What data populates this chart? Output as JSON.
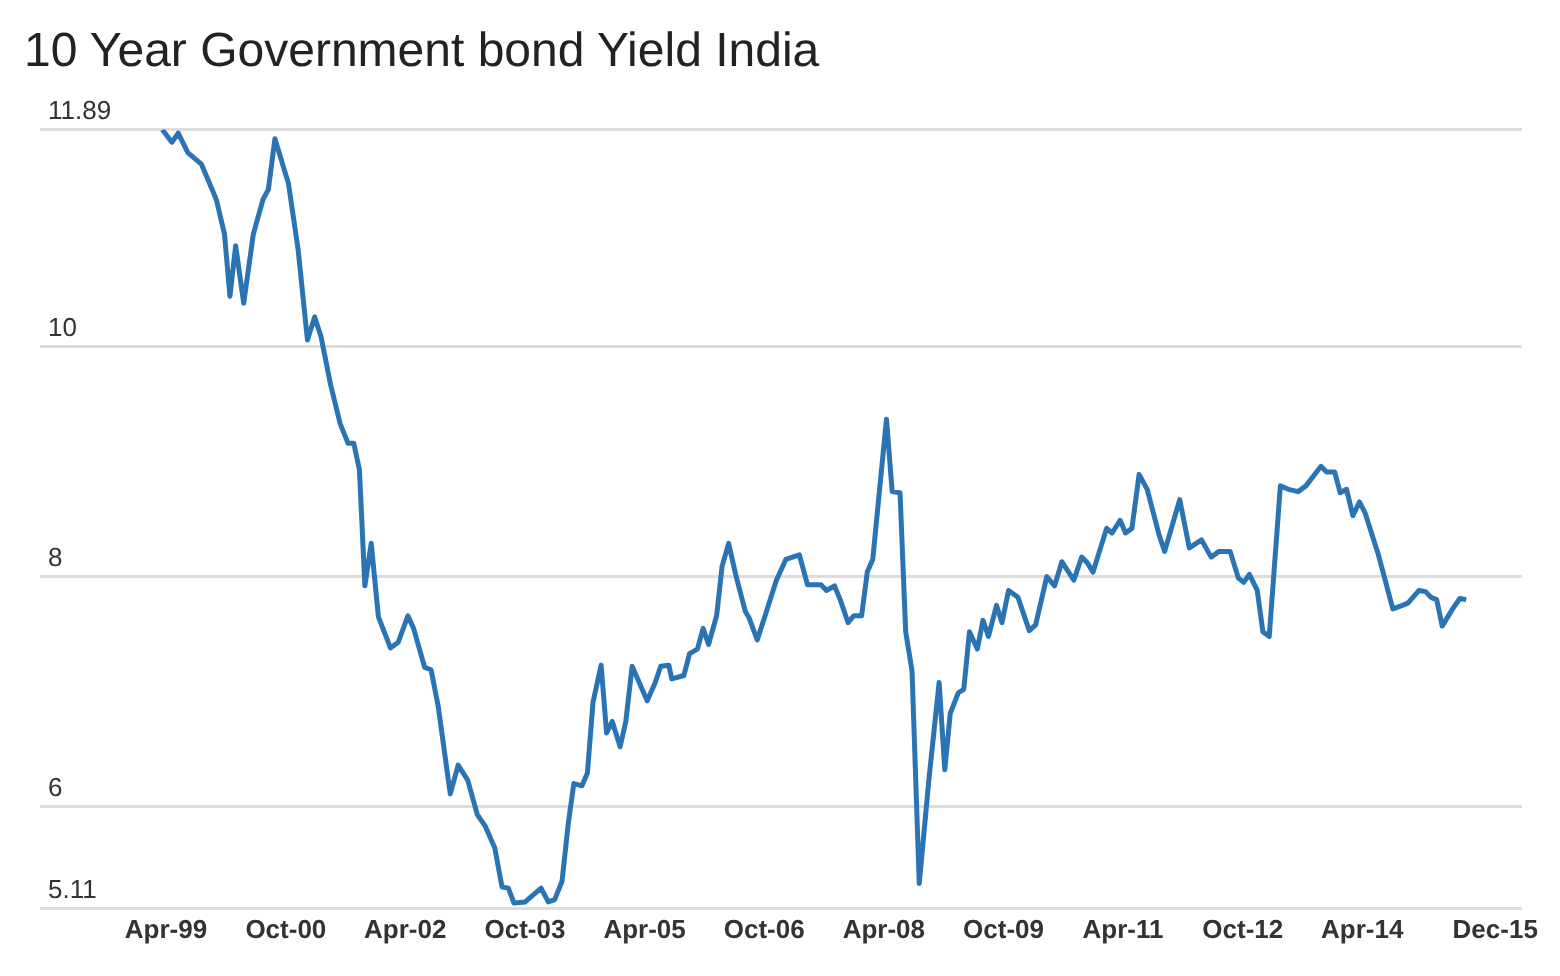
{
  "chart_data": {
    "type": "line",
    "title": "10 Year Government bond Yield India",
    "x": [
      "1999-03-15",
      "1999-04-28",
      "1999-05-27",
      "1999-07-10",
      "1999-09-10",
      "1999-11-18",
      "1999-12-25",
      "2000-01-19",
      "2000-02-14",
      "2000-03-22",
      "2000-05-05",
      "2000-06-18",
      "2000-07-13",
      "2000-08-12",
      "2000-10-13",
      "2000-11-26",
      "2001-01-08",
      "2001-02-10",
      "2001-03-11",
      "2001-04-24",
      "2001-06-07",
      "2001-07-13",
      "2001-08-08",
      "2001-09-03",
      "2001-09-28",
      "2001-10-27",
      "2001-11-29",
      "2002-01-23",
      "2002-02-28",
      "2002-04-13",
      "2002-05-09",
      "2002-06-29",
      "2002-07-28",
      "2002-08-30",
      "2002-10-24",
      "2002-11-29",
      "2003-01-12",
      "2003-02-25",
      "2003-04-02",
      "2003-05-16",
      "2003-06-18",
      "2003-07-17",
      "2003-08-12",
      "2003-10-02",
      "2003-12-14",
      "2004-01-16",
      "2004-02-14",
      "2004-03-19",
      "2004-04-17",
      "2004-05-12",
      "2004-06-18",
      "2004-07-13",
      "2004-08-08",
      "2004-09-14",
      "2004-10-09",
      "2004-11-04",
      "2004-12-10",
      "2005-01-05",
      "2005-02-03",
      "2005-04-13",
      "2005-05-20",
      "2005-06-14",
      "2005-07-21",
      "2005-08-04",
      "2005-09-28",
      "2005-10-24",
      "2005-11-29",
      "2005-12-25",
      "2006-01-19",
      "2006-02-25",
      "2006-03-22",
      "2006-04-21",
      "2006-05-23",
      "2006-07-06",
      "2006-07-24",
      "2006-08-30",
      "2006-10-05",
      "2006-11-26",
      "2007-01-08",
      "2007-03-11",
      "2007-04-17",
      "2007-06-18",
      "2007-07-13",
      "2007-08-19",
      "2007-09-14",
      "2007-10-20",
      "2007-11-15",
      "2007-12-21",
      "2008-01-16",
      "2008-02-10",
      "2008-04-13",
      "2008-05-09",
      "2008-06-14",
      "2008-07-10",
      "2008-08-08",
      "2008-09-10",
      "2008-10-24",
      "2008-12-10",
      "2009-01-05",
      "2009-01-30",
      "2009-03-08",
      "2009-04-02",
      "2009-04-28",
      "2009-06-03",
      "2009-06-29",
      "2009-07-24",
      "2009-08-30",
      "2009-09-24",
      "2009-10-24",
      "2009-12-06",
      "2010-01-27",
      "2010-02-25",
      "2010-03-30",
      "2010-04-17",
      "2010-05-23",
      "2010-06-25",
      "2010-08-19",
      "2010-09-24",
      "2010-10-20",
      "2010-11-15",
      "2011-01-16",
      "2011-02-10",
      "2011-03-19",
      "2011-04-13",
      "2011-05-12",
      "2011-06-14",
      "2011-07-21",
      "2011-09-14",
      "2011-10-09",
      "2011-12-17",
      "2012-01-30",
      "2012-03-26",
      "2012-05-09",
      "2012-06-14",
      "2012-08-04",
      "2012-09-10",
      "2012-10-05",
      "2012-10-31",
      "2012-12-06",
      "2013-01-01",
      "2013-01-30",
      "2013-03-22",
      "2013-04-28",
      "2013-06-11",
      "2013-07-17",
      "2013-09-24",
      "2013-10-20",
      "2013-11-26",
      "2013-12-21",
      "2014-01-19",
      "2014-02-17",
      "2014-03-19",
      "2014-04-13",
      "2014-06-14",
      "2014-08-19",
      "2014-10-02",
      "2014-10-27",
      "2014-12-17",
      "2015-01-16",
      "2015-02-10",
      "2015-03-08",
      "2015-04-02",
      "2015-05-20",
      "2015-06-22",
      "2015-07-21"
    ],
    "series": [
      {
        "color": "#2b74b4",
        "values": [
          11.89,
          11.78,
          11.86,
          11.69,
          11.59,
          11.28,
          10.98,
          10.44,
          10.88,
          10.38,
          10.98,
          11.28,
          11.37,
          11.81,
          11.42,
          10.85,
          10.06,
          10.26,
          10.09,
          9.67,
          9.33,
          9.16,
          9.16,
          8.93,
          7.92,
          8.29,
          7.65,
          7.38,
          7.43,
          7.66,
          7.55,
          7.21,
          7.19,
          6.87,
          6.11,
          6.36,
          6.23,
          5.93,
          5.83,
          5.64,
          5.3,
          5.29,
          5.16,
          5.17,
          5.29,
          5.17,
          5.19,
          5.35,
          5.86,
          6.2,
          6.18,
          6.29,
          6.91,
          7.23,
          6.64,
          6.74,
          6.52,
          6.74,
          7.22,
          6.92,
          7.08,
          7.22,
          7.23,
          7.11,
          7.14,
          7.33,
          7.37,
          7.55,
          7.41,
          7.66,
          8.09,
          8.29,
          8.02,
          7.7,
          7.64,
          7.45,
          7.66,
          7.97,
          8.15,
          8.19,
          7.93,
          7.93,
          7.88,
          7.92,
          7.8,
          7.6,
          7.66,
          7.66,
          8.04,
          8.15,
          9.37,
          8.74,
          8.73,
          7.52,
          7.18,
          5.33,
          6.23,
          7.08,
          6.32,
          6.81,
          6.99,
          7.02,
          7.52,
          7.37,
          7.62,
          7.48,
          7.75,
          7.6,
          7.88,
          7.82,
          7.53,
          7.58,
          7.85,
          8.0,
          7.92,
          8.13,
          7.97,
          8.17,
          8.12,
          8.04,
          8.42,
          8.38,
          8.49,
          8.38,
          8.42,
          8.89,
          8.76,
          8.36,
          8.22,
          8.67,
          8.25,
          8.32,
          8.17,
          8.22,
          8.22,
          7.99,
          7.95,
          8.02,
          7.88,
          7.52,
          7.48,
          8.79,
          8.76,
          8.74,
          8.79,
          8.96,
          8.91,
          8.91,
          8.73,
          8.76,
          8.53,
          8.65,
          8.56,
          8.19,
          7.72,
          7.75,
          7.77,
          7.88,
          7.87,
          7.82,
          7.8,
          7.57,
          7.72,
          7.81,
          7.8
        ]
      }
    ],
    "xlim": [
      "1997-09",
      "2016-04"
    ],
    "xticks": [
      {
        "value": "1999-04",
        "label": "Apr-99"
      },
      {
        "value": "2000-10",
        "label": "Oct-00"
      },
      {
        "value": "2002-04",
        "label": "Apr-02"
      },
      {
        "value": "2003-10",
        "label": "Oct-03"
      },
      {
        "value": "2005-04",
        "label": "Apr-05"
      },
      {
        "value": "2006-10",
        "label": "Oct-06"
      },
      {
        "value": "2008-04",
        "label": "Apr-08"
      },
      {
        "value": "2009-10",
        "label": "Oct-09"
      },
      {
        "value": "2011-04",
        "label": "Apr-11"
      },
      {
        "value": "2012-10",
        "label": "Oct-12"
      },
      {
        "value": "2014-04",
        "label": "Apr-14"
      },
      {
        "value": "2015-12",
        "label": "Dec-15"
      }
    ],
    "ylim": [
      5.11,
      11.89
    ],
    "yticks": [
      5.11,
      6,
      8,
      10,
      11.89
    ],
    "grid": "y",
    "legend": false,
    "marker": "none",
    "line_style": "solid"
  }
}
